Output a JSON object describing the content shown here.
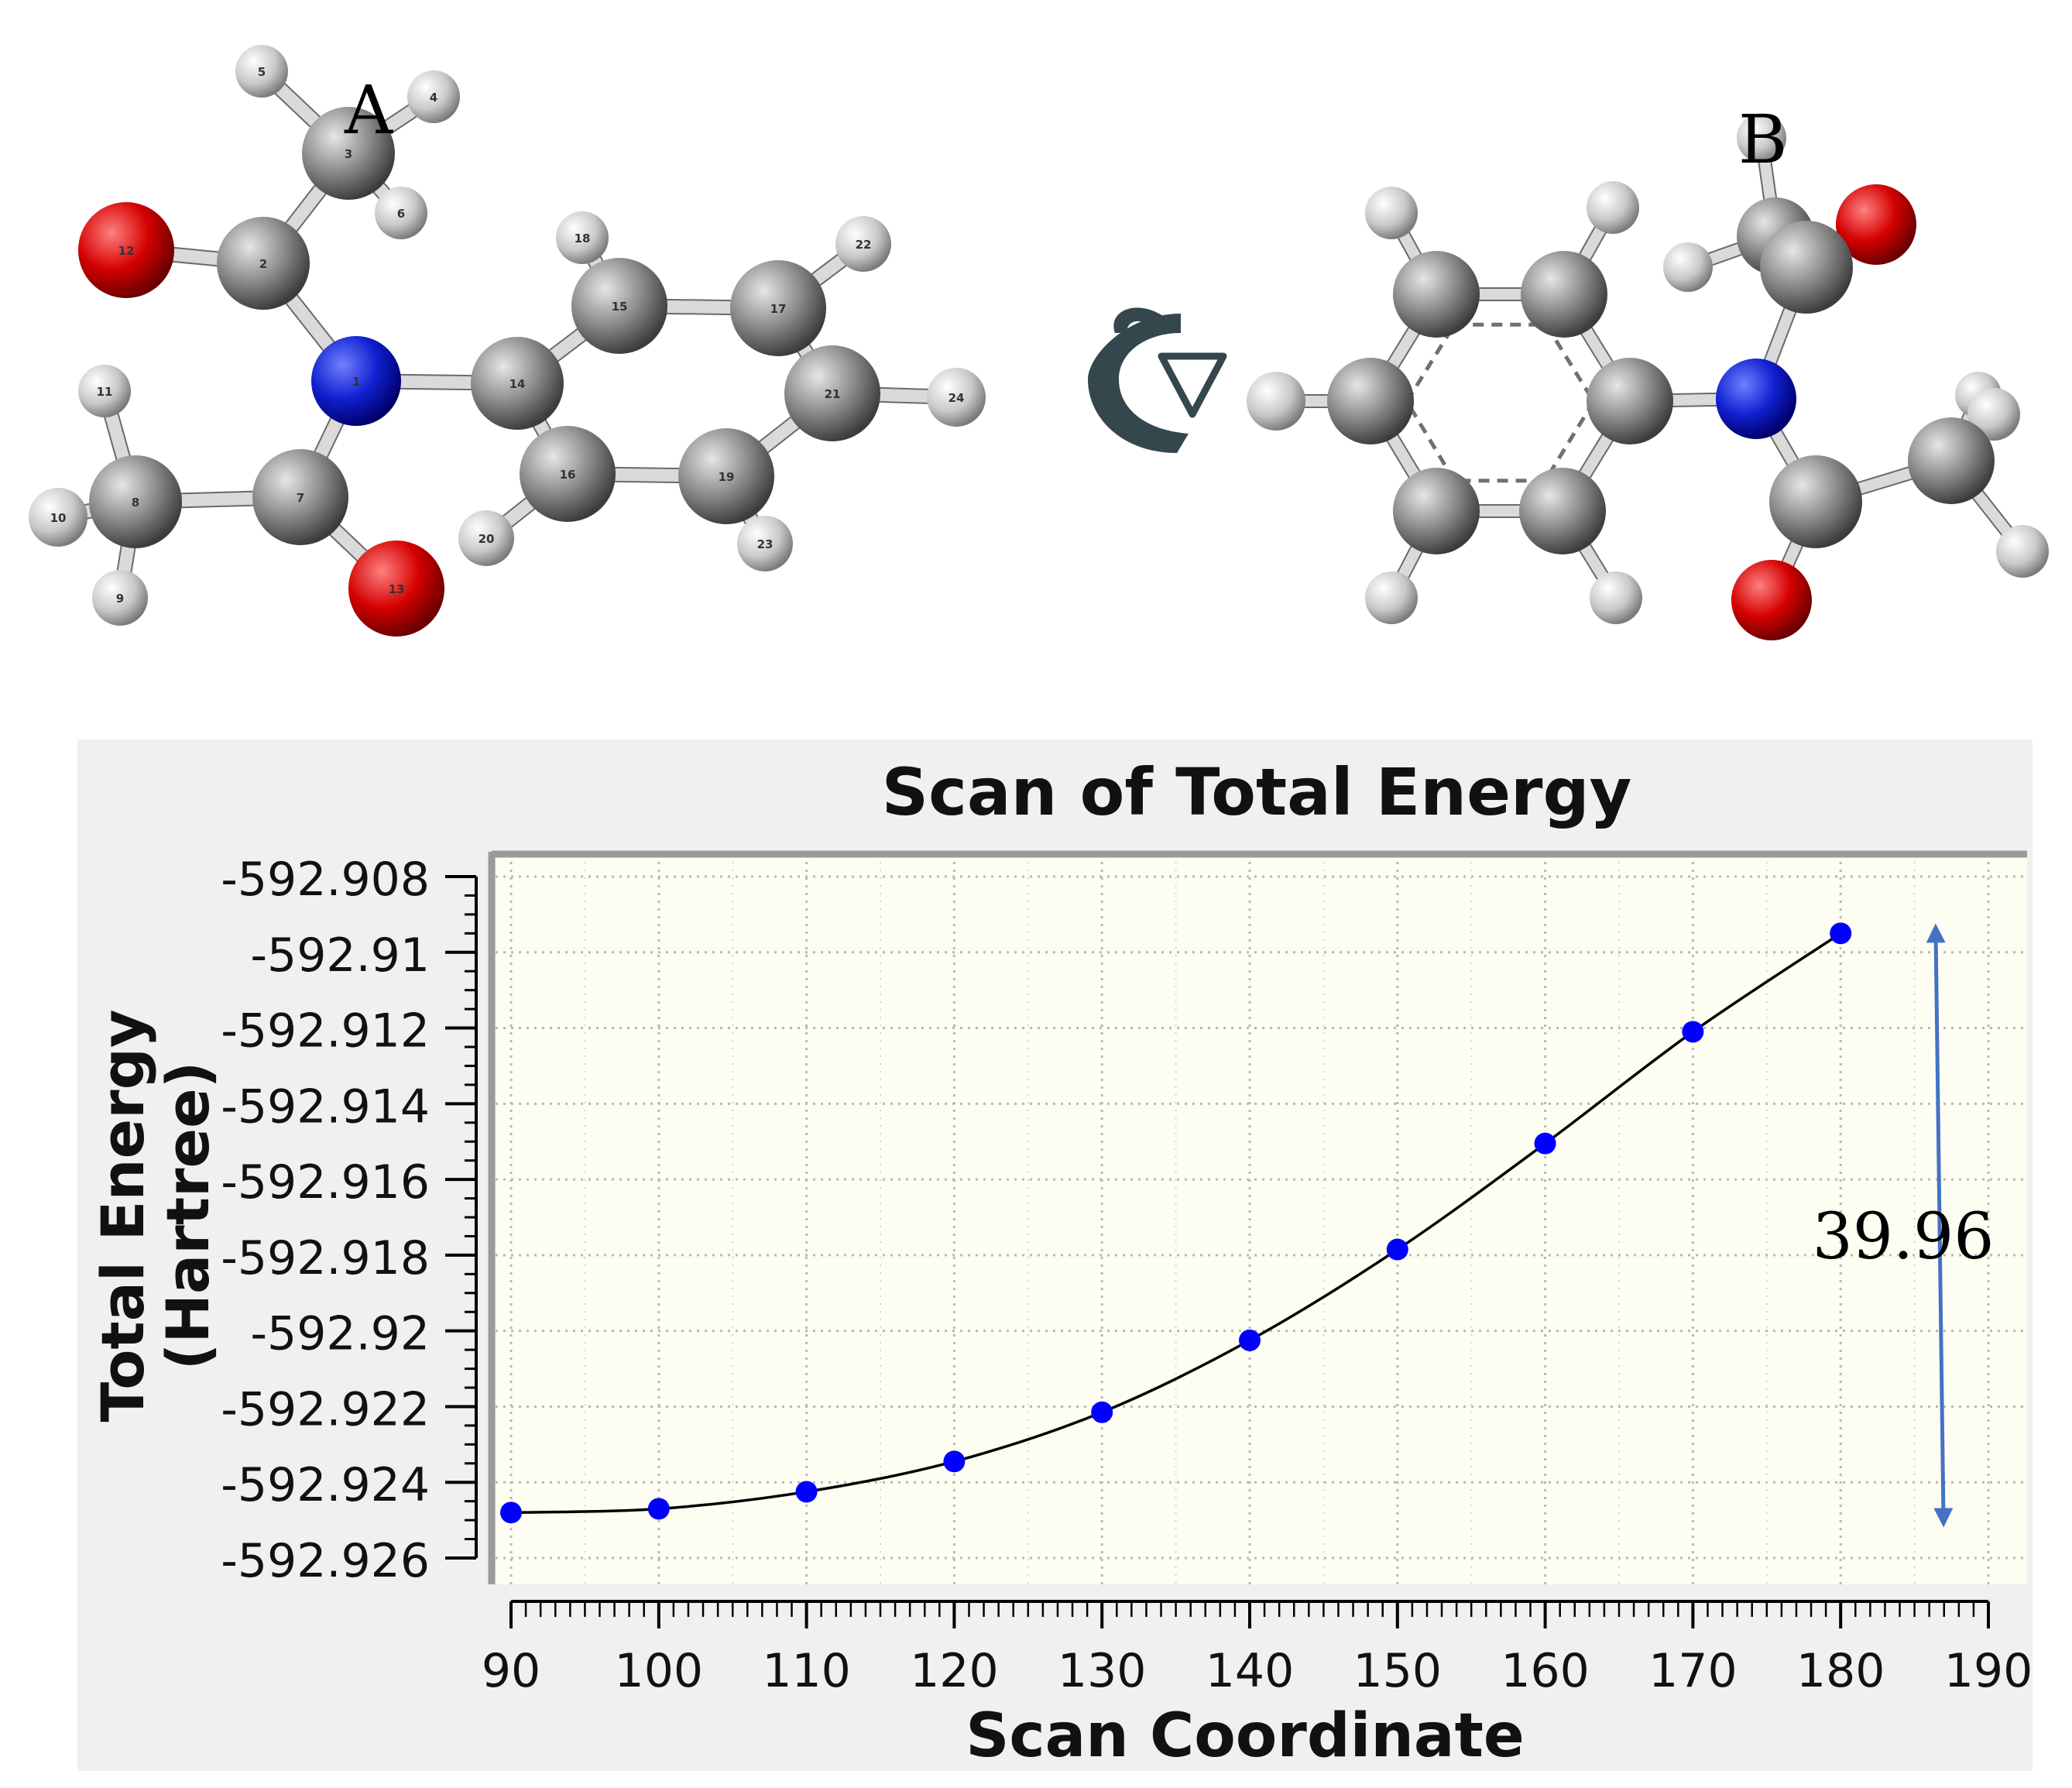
{
  "molecules": {
    "labels": [
      "A",
      "B"
    ],
    "atom_numbers": [
      "1",
      "2",
      "3",
      "4",
      "5",
      "6",
      "7",
      "8",
      "9",
      "10",
      "11",
      "12",
      "13",
      "14",
      "15",
      "16",
      "17",
      "18",
      "19",
      "20",
      "21",
      "22",
      "23",
      "24"
    ]
  },
  "annotation": {
    "energy_barrier": "39.96"
  },
  "colors": {
    "carbon": "#808080",
    "nitrogen": "#1020d0",
    "oxygen": "#d00000",
    "hydrogen": "#d8d8d8",
    "marker": "#0000ff",
    "line": "#000000",
    "plot_bg": "#fdfdf2",
    "panel_bg": "#f0f0f0",
    "arrow": "#4472c4",
    "rotate_icon": "#33474d"
  },
  "icons": {
    "rotation": "circular-arrow-icon"
  },
  "chart_data": {
    "type": "line",
    "title": "Scan of Total Energy",
    "xlabel": "Scan Coordinate",
    "ylabel": [
      "Total Energy",
      "(Hartree)"
    ],
    "xlim": [
      90,
      190
    ],
    "ylim": [
      -592.926,
      -592.908
    ],
    "x_ticks": [
      90,
      100,
      110,
      120,
      130,
      140,
      150,
      160,
      170,
      180,
      190
    ],
    "x_tick_labels": [
      "90",
      "100",
      "110",
      "120",
      "130",
      "140",
      "150",
      "160",
      "170",
      "180",
      "190"
    ],
    "y_ticks": [
      -592.908,
      -592.91,
      -592.912,
      -592.914,
      -592.916,
      -592.918,
      -592.92,
      -592.922,
      -592.924,
      -592.926
    ],
    "y_tick_labels": [
      "-592.908",
      "-592.91",
      "-592.912",
      "-592.914",
      "-592.916",
      "-592.918",
      "-592.92",
      "-592.922",
      "-592.924",
      "-592.926"
    ],
    "grid": true,
    "series": [
      {
        "x": [
          90,
          100,
          110,
          120,
          130,
          140,
          150,
          160,
          170,
          180
        ],
        "y": [
          -592.9248,
          -592.9247,
          -592.92425,
          -592.92345,
          -592.92215,
          -592.92025,
          -592.91785,
          -592.91505,
          -592.9121,
          -592.9095
        ]
      }
    ]
  }
}
